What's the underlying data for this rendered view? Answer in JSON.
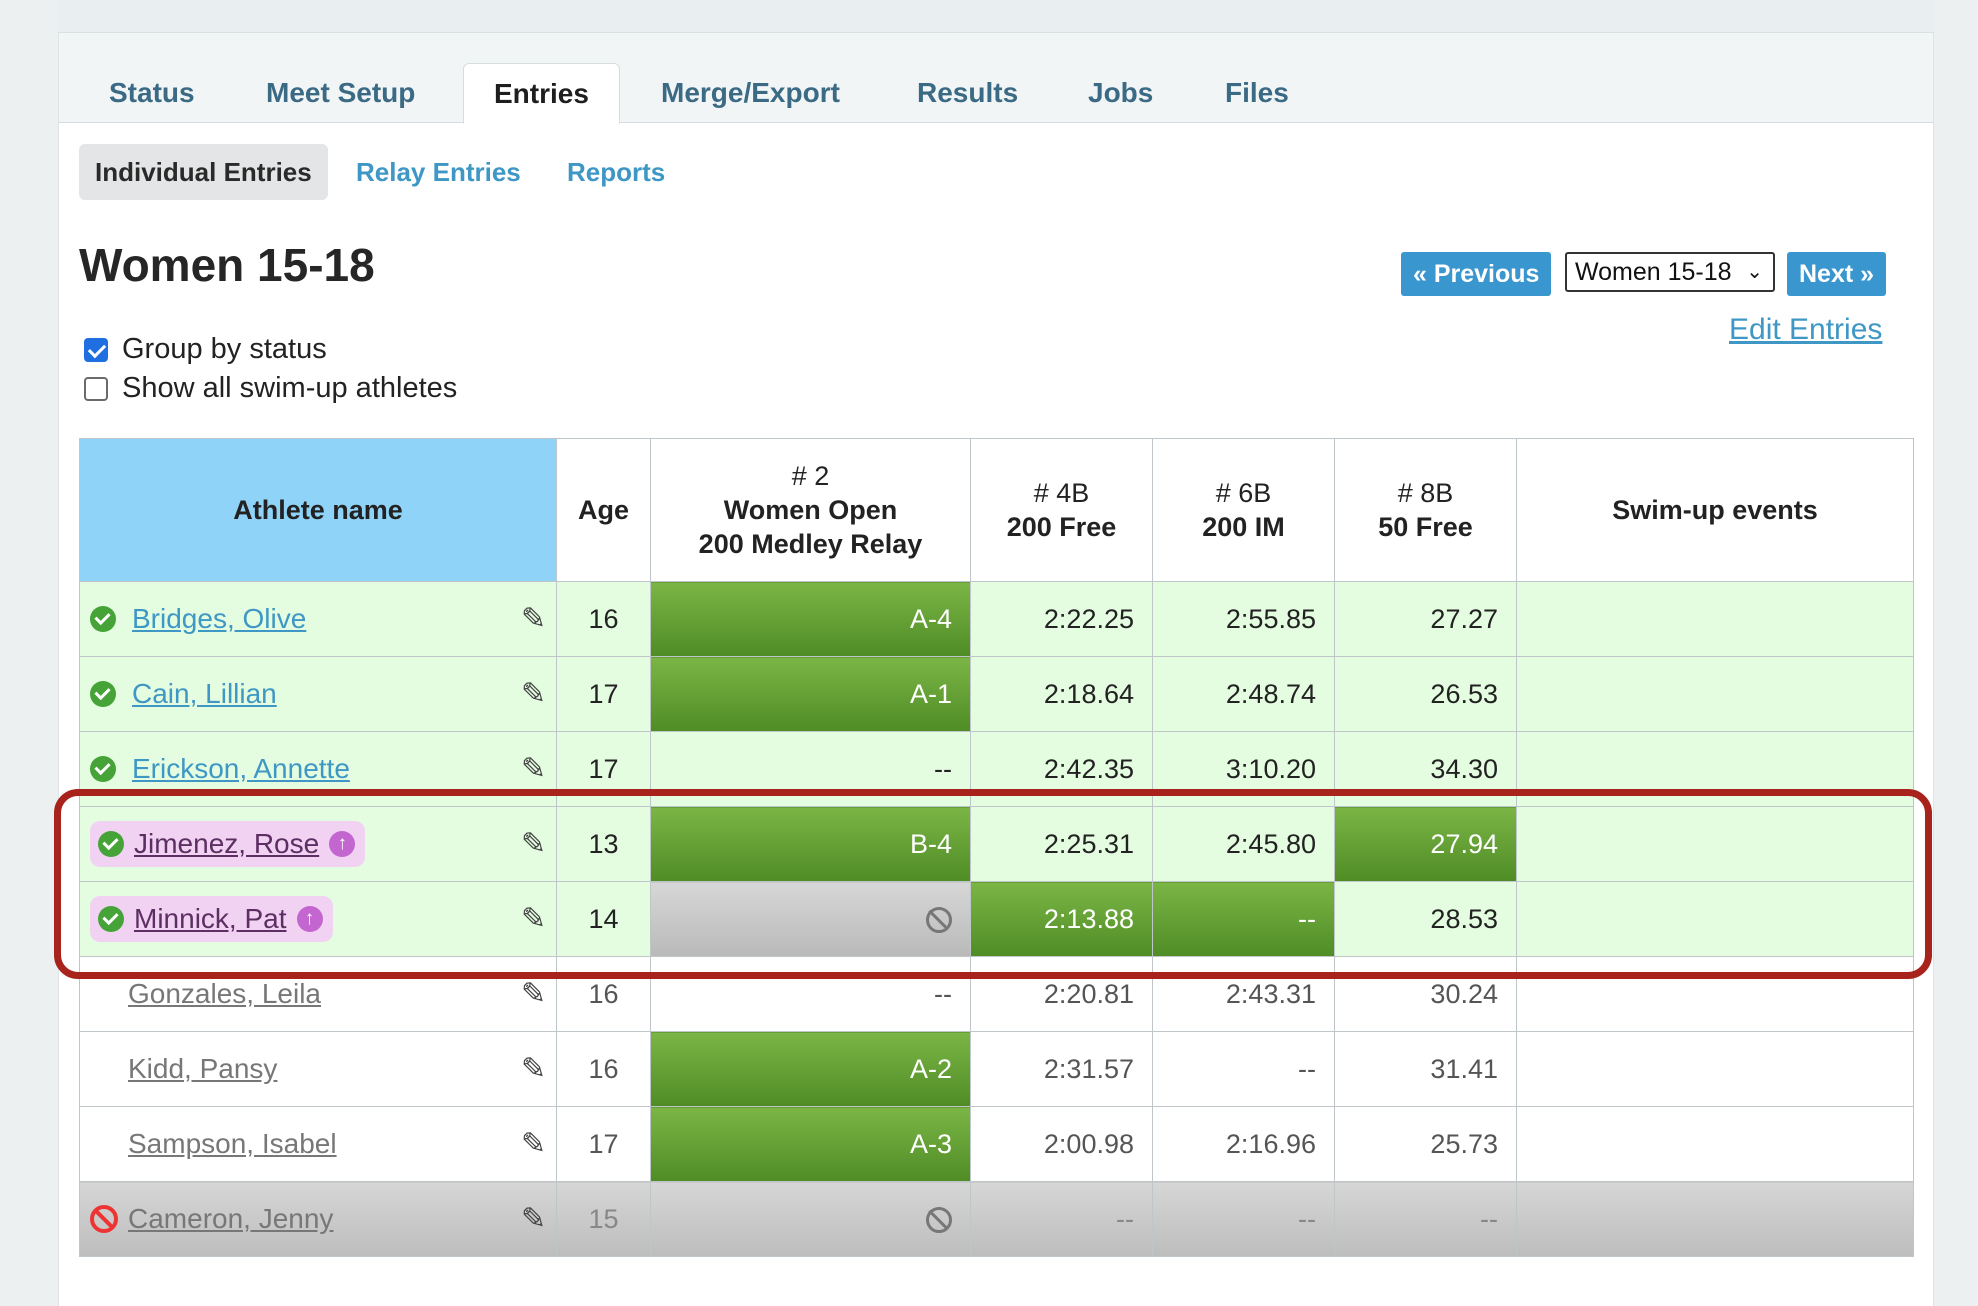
{
  "tabs": [
    "Status",
    "Meet Setup",
    "Entries",
    "Merge/Export",
    "Results",
    "Jobs",
    "Files"
  ],
  "active_tab": "Entries",
  "subtabs": [
    "Individual Entries",
    "Relay Entries",
    "Reports"
  ],
  "active_subtab": "Individual Entries",
  "page_title": "Women 15-18",
  "nav": {
    "previous_label": "« Previous",
    "group_select_value": "Women 15-18",
    "next_label": "Next »",
    "edit_entries_label": "Edit Entries"
  },
  "options": {
    "group_by_status": {
      "label": "Group by status",
      "checked": true
    },
    "show_swimup": {
      "label": "Show all swim-up athletes",
      "checked": false
    }
  },
  "table": {
    "headers": {
      "name": "Athlete name",
      "age": "Age",
      "event2": {
        "num": "# 2",
        "line1": "Women Open",
        "line2": "200 Medley Relay"
      },
      "event4b": {
        "num": "# 4B",
        "line1": "200 Free"
      },
      "event6b": {
        "num": "# 6B",
        "line1": "200 IM"
      },
      "event8b": {
        "num": "# 8B",
        "line1": "50 Free"
      },
      "swimup": "Swim-up events"
    },
    "rows": [
      {
        "name": "Bridges, Olive",
        "age": "16",
        "relay": "A-4",
        "free200": "2:22.25",
        "im200": "2:55.85",
        "free50": "27.27",
        "swimup": ""
      },
      {
        "name": "Cain, Lillian",
        "age": "17",
        "relay": "A-1",
        "free200": "2:18.64",
        "im200": "2:48.74",
        "free50": "26.53",
        "swimup": ""
      },
      {
        "name": "Erickson, Annette",
        "age": "17",
        "relay": "--",
        "free200": "2:42.35",
        "im200": "3:10.20",
        "free50": "34.30",
        "swimup": ""
      },
      {
        "name": "Jimenez, Rose",
        "age": "13",
        "relay": "B-4",
        "free200": "2:25.31",
        "im200": "2:45.80",
        "free50": "27.94",
        "swimup": ""
      },
      {
        "name": "Minnick, Pat",
        "age": "14",
        "relay": "",
        "free200": "2:13.88",
        "im200": "--",
        "free50": "28.53",
        "swimup": ""
      },
      {
        "name": "Gonzales, Leila",
        "age": "16",
        "relay": "--",
        "free200": "2:20.81",
        "im200": "2:43.31",
        "free50": "30.24",
        "swimup": ""
      },
      {
        "name": "Kidd, Pansy",
        "age": "16",
        "relay": "A-2",
        "free200": "2:31.57",
        "im200": "--",
        "free50": "31.41",
        "swimup": ""
      },
      {
        "name": "Sampson, Isabel",
        "age": "17",
        "relay": "A-3",
        "free200": "2:00.98",
        "im200": "2:16.96",
        "free50": "25.73",
        "swimup": ""
      },
      {
        "name": "Cameron, Jenny",
        "age": "15",
        "relay": "",
        "free200": "--",
        "im200": "--",
        "free50": "--",
        "swimup": ""
      }
    ]
  },
  "colors": {
    "accent": "#3a96cf",
    "entered_green": "#5e9d30",
    "ok_row_bg": "#e4fde0",
    "swimup_pill": "#f1d2f3",
    "highlight_outline": "#a8231b",
    "header_name_bg": "#8fd3f8"
  }
}
